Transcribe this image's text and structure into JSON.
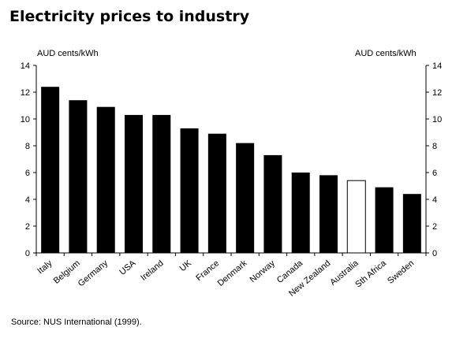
{
  "title": "Electricity prices to industry",
  "source": "Source:  NUS International (1999).",
  "chart_data": {
    "type": "bar",
    "title": "Electricity prices to industry",
    "ylabel_left": "AUD cents/kWh",
    "ylabel_right": "AUD cents/kWh",
    "ylim": [
      0,
      14
    ],
    "yticks": [
      0,
      2,
      4,
      6,
      8,
      10,
      12,
      14
    ],
    "grid": false,
    "categories": [
      "Italy",
      "Belgium",
      "Germany",
      "USA",
      "Ireland",
      "UK",
      "France",
      "Denmark",
      "Norway",
      "Canada",
      "New Zealand",
      "Australia",
      "Sth Africa",
      "Sweden"
    ],
    "values": [
      12.4,
      11.4,
      10.9,
      10.3,
      10.3,
      9.3,
      8.9,
      8.2,
      7.3,
      6.0,
      5.8,
      5.4,
      4.9,
      4.4
    ],
    "highlight_category": "Australia",
    "colors": {
      "bar": "#000000",
      "highlight_fill": "#ffffff",
      "highlight_stroke": "#000000"
    }
  }
}
